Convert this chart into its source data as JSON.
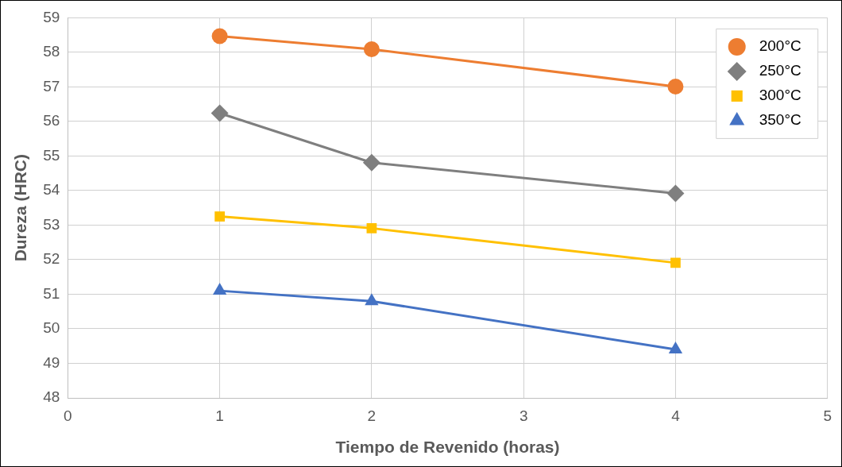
{
  "chart_data": {
    "type": "line",
    "xlabel": "Tiempo de Revenido (horas)",
    "ylabel": "Dureza (HRC)",
    "x": [
      1,
      2,
      4
    ],
    "xlim": [
      0,
      5
    ],
    "xticks": [
      0,
      1,
      2,
      3,
      4,
      5
    ],
    "ylim": [
      48,
      59
    ],
    "yticks": [
      48,
      49,
      50,
      51,
      52,
      53,
      54,
      55,
      56,
      57,
      58,
      59
    ],
    "grid": true,
    "legend": "top right",
    "series": [
      {
        "name": "200°C",
        "color": "#ed7d31",
        "marker": "circle",
        "values": [
          58.47,
          58.09,
          57.01
        ]
      },
      {
        "name": "250°C",
        "color": "#7f7f7f",
        "marker": "diamond",
        "values": [
          56.24,
          54.81,
          53.92
        ]
      },
      {
        "name": "300°C",
        "color": "#ffc000",
        "marker": "square",
        "values": [
          53.25,
          52.91,
          51.91
        ]
      },
      {
        "name": "350°C",
        "color": "#4472c4",
        "marker": "triangle",
        "values": [
          51.1,
          50.8,
          49.4
        ]
      }
    ]
  }
}
